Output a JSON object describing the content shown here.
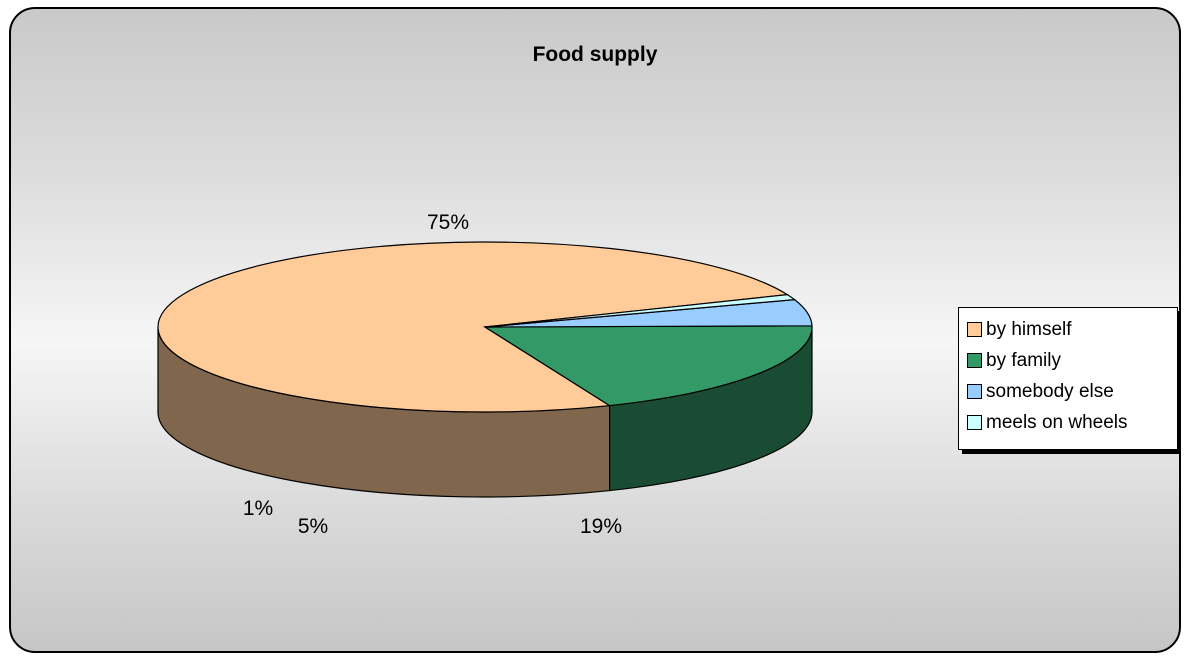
{
  "chart_data": {
    "type": "pie",
    "title": "Food supply",
    "categories": [
      "by himself",
      "by family",
      "somebody else",
      "meels on wheels"
    ],
    "values": [
      75,
      19,
      5,
      1
    ],
    "data_labels": [
      "75%",
      "19%",
      "5%",
      "1%"
    ],
    "colors": [
      "#ffcc99",
      "#339966",
      "#99ccff",
      "#ccffff"
    ],
    "side_colors": [
      "#7f664c",
      "#1a4c33",
      "#4c6680",
      "#668080"
    ],
    "legend_position": "right",
    "three_d": true
  }
}
